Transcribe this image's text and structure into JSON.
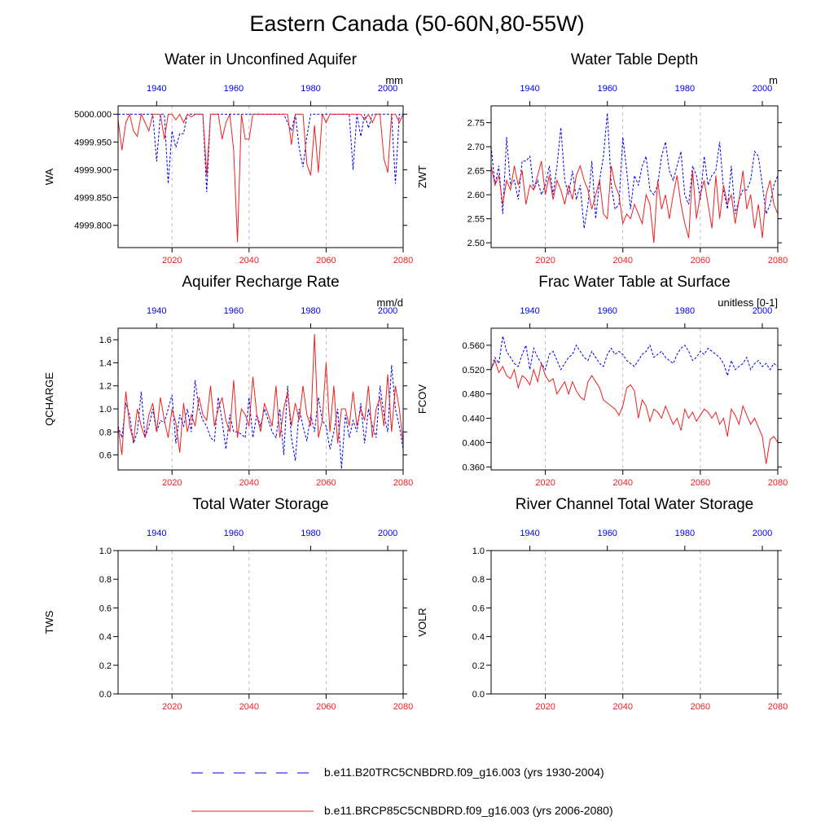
{
  "title": "Eastern Canada (50-60N,80-55W)",
  "colors": {
    "historical": "#0000ee",
    "future": "#ee2020",
    "axis": "#000000",
    "grid": "#b0b0b0"
  },
  "legend": {
    "historical_label": "b.e11.B20TRC5CNBDRD.f09_g16.003 (yrs 1930-2004)",
    "future_label": "b.e11.BRCP85C5CNBDRD.f09_g16.003 (yrs 2006-2080)"
  },
  "chart_data": [
    {
      "type": "line",
      "title": "Water in Unconfined Aquifer",
      "ylabel": "WA",
      "units": "mm",
      "ylim": [
        4999.76,
        5000.015
      ],
      "yticks": [
        4999.8,
        4999.85,
        4999.9,
        4999.95,
        5000.0
      ],
      "ytick_decimals": 3,
      "x_top_range": [
        1930,
        2004
      ],
      "x_top_ticks": [
        1940,
        1960,
        1980,
        2000
      ],
      "x_bottom_range": [
        2006,
        2080
      ],
      "x_bottom_ticks": [
        2020,
        2040,
        2060,
        2080
      ],
      "grid_x": [
        2020,
        2040,
        2060
      ],
      "series": [
        {
          "name": "b.e11.B20TRC5CNBDRD.f09_g16.003 (yrs 1930-2004)",
          "values": [
            5000.0,
            5000.0,
            5000.0,
            5000.0,
            5000.0,
            5000.0,
            5000.0,
            5000.0,
            5000.0,
            5000.0,
            4999.915,
            5000.0,
            5000.0,
            4999.875,
            4999.97,
            4999.94,
            4999.965,
            4999.965,
            5000.0,
            5000.0,
            5000.0,
            5000.0,
            5000.0,
            4999.86,
            5000.0,
            5000.0,
            5000.0,
            5000.0,
            5000.0,
            5000.0,
            5000.0,
            5000.0,
            5000.0,
            5000.0,
            5000.0,
            5000.0,
            5000.0,
            5000.0,
            5000.0,
            5000.0,
            5000.0,
            5000.0,
            5000.0,
            5000.0,
            4999.985,
            4999.97,
            5000.0,
            4999.94,
            4999.905,
            4999.96,
            5000.0,
            5000.0,
            5000.0,
            5000.0,
            5000.0,
            5000.0,
            5000.0,
            5000.0,
            5000.0,
            5000.0,
            5000.0,
            4999.9,
            5000.0,
            4999.96,
            5000.0,
            4999.975,
            5000.0,
            5000.0,
            5000.0,
            5000.0,
            5000.0,
            5000.0,
            4999.875,
            5000.0,
            5000.0
          ]
        },
        {
          "name": "b.e11.BRCP85C5CNBDRD.f09_g16.003 (yrs 2006-2080)",
          "values": [
            4999.99,
            4999.935,
            4999.985,
            5000.0,
            4999.97,
            4999.96,
            5000.0,
            4999.985,
            4999.97,
            5000.0,
            5000.0,
            5000.0,
            4999.955,
            5000.0,
            5000.0,
            4999.99,
            5000.0,
            4999.985,
            5000.0,
            4999.995,
            5000.0,
            5000.0,
            5000.0,
            4999.89,
            5000.0,
            5000.0,
            5000.0,
            4999.955,
            4999.985,
            5000.0,
            4999.935,
            4999.77,
            5000.0,
            4999.955,
            4999.955,
            5000.0,
            5000.0,
            5000.0,
            5000.0,
            5000.0,
            5000.0,
            5000.0,
            5000.0,
            5000.0,
            5000.0,
            4999.945,
            5000.0,
            5000.0,
            5000.0,
            4999.91,
            4999.89,
            4999.98,
            4999.895,
            5000.0,
            4999.985,
            5000.0,
            5000.0,
            5000.0,
            5000.0,
            5000.0,
            5000.0,
            5000.0,
            5000.0,
            5000.0,
            4999.99,
            5000.0,
            4999.985,
            5000.0,
            5000.0,
            4999.92,
            4999.895,
            5000.0,
            5000.0,
            4999.985,
            5000.0
          ]
        }
      ]
    },
    {
      "type": "line",
      "title": "Water Table Depth",
      "ylabel": "ZWT",
      "units": "m",
      "ylim": [
        2.49,
        2.785
      ],
      "yticks": [
        2.5,
        2.55,
        2.6,
        2.65,
        2.7,
        2.75
      ],
      "ytick_decimals": 2,
      "x_top_range": [
        1930,
        2004
      ],
      "x_top_ticks": [
        1940,
        1960,
        1980,
        2000
      ],
      "x_bottom_range": [
        2006,
        2080
      ],
      "x_bottom_ticks": [
        2020,
        2040,
        2060,
        2080
      ],
      "grid_x": [
        2020,
        2040,
        2060
      ],
      "series": [
        {
          "name": "b.e11.B20TRC5CNBDRD.f09_g16.003 (yrs 1930-2004)",
          "values": [
            2.7,
            2.62,
            2.66,
            2.56,
            2.72,
            2.62,
            2.63,
            2.59,
            2.67,
            2.67,
            2.68,
            2.61,
            2.63,
            2.6,
            2.62,
            2.66,
            2.6,
            2.66,
            2.74,
            2.63,
            2.6,
            2.65,
            2.59,
            2.62,
            2.53,
            2.58,
            2.67,
            2.55,
            2.63,
            2.68,
            2.77,
            2.62,
            2.57,
            2.58,
            2.72,
            2.65,
            2.57,
            2.64,
            2.62,
            2.66,
            2.68,
            2.61,
            2.6,
            2.62,
            2.68,
            2.71,
            2.65,
            2.63,
            2.66,
            2.69,
            2.6,
            2.58,
            2.66,
            2.64,
            2.59,
            2.68,
            2.62,
            2.64,
            2.65,
            2.71,
            2.61,
            2.57,
            2.66,
            2.56,
            2.59,
            2.61,
            2.61,
            2.63,
            2.69,
            2.68,
            2.62,
            2.56,
            2.58,
            2.62,
            2.64
          ]
        },
        {
          "name": "b.e11.BRCP85C5CNBDRD.f09_g16.003 (yrs 2006-2080)",
          "values": [
            2.66,
            2.62,
            2.64,
            2.58,
            2.63,
            2.61,
            2.66,
            2.62,
            2.65,
            2.58,
            2.62,
            2.61,
            2.64,
            2.67,
            2.6,
            2.64,
            2.59,
            2.63,
            2.61,
            2.58,
            2.62,
            2.59,
            2.64,
            2.66,
            2.63,
            2.61,
            2.57,
            2.6,
            2.63,
            2.56,
            2.55,
            2.66,
            2.62,
            2.6,
            2.54,
            2.56,
            2.55,
            2.58,
            2.56,
            2.54,
            2.6,
            2.58,
            2.5,
            2.63,
            2.57,
            2.6,
            2.55,
            2.6,
            2.64,
            2.58,
            2.54,
            2.51,
            2.65,
            2.55,
            2.6,
            2.63,
            2.58,
            2.53,
            2.64,
            2.55,
            2.62,
            2.58,
            2.6,
            2.54,
            2.59,
            2.65,
            2.57,
            2.6,
            2.53,
            2.58,
            2.51,
            2.6,
            2.63,
            2.58,
            2.56
          ]
        }
      ]
    },
    {
      "type": "line",
      "title": "Aquifer Recharge Rate",
      "ylabel": "QCHARGE",
      "units": "mm/d",
      "ylim": [
        0.47,
        1.7
      ],
      "yticks": [
        0.6,
        0.8,
        1.0,
        1.2,
        1.4,
        1.6
      ],
      "ytick_decimals": 1,
      "x_top_range": [
        1930,
        2004
      ],
      "x_top_ticks": [
        1940,
        1960,
        1980,
        2000
      ],
      "x_bottom_range": [
        2006,
        2080
      ],
      "x_bottom_ticks": [
        2020,
        2040,
        2060,
        2080
      ],
      "grid_x": [
        2020,
        2040,
        2060
      ],
      "series": [
        {
          "name": "b.e11.B20TRC5CNBDRD.f09_g16.003 (yrs 1930-2004)",
          "values": [
            0.85,
            0.75,
            1.05,
            0.95,
            0.7,
            0.8,
            1.15,
            0.75,
            0.85,
            1.0,
            0.8,
            0.9,
            0.88,
            1.0,
            1.12,
            0.7,
            0.95,
            0.85,
            1.0,
            0.8,
            1.25,
            1.0,
            0.9,
            0.85,
            0.75,
            0.72,
            1.1,
            0.9,
            0.65,
            0.95,
            0.8,
            0.8,
            0.78,
            0.75,
            1.1,
            0.75,
            0.95,
            0.85,
            1.0,
            0.9,
            0.8,
            0.75,
            1.0,
            0.6,
            1.2,
            0.75,
            0.55,
            1.0,
            0.85,
            0.72,
            0.95,
            0.8,
            1.1,
            0.9,
            0.85,
            0.65,
            0.8,
            1.0,
            0.48,
            0.95,
            0.75,
            0.9,
            0.8,
            1.05,
            0.7,
            1.0,
            0.85,
            0.75,
            1.2,
            0.95,
            0.8,
            1.38,
            1.0,
            0.85,
            0.65
          ]
        },
        {
          "name": "b.e11.BRCP85C5CNBDRD.f09_g16.003 (yrs 2006-2080)",
          "values": [
            0.85,
            0.6,
            1.15,
            0.85,
            0.72,
            1.0,
            0.85,
            0.75,
            0.95,
            1.05,
            0.8,
            1.1,
            0.9,
            0.75,
            1.0,
            0.88,
            0.62,
            1.05,
            0.8,
            0.95,
            0.85,
            1.1,
            0.95,
            0.9,
            1.2,
            0.85,
            1.0,
            1.1,
            0.9,
            0.8,
            1.25,
            0.75,
            1.0,
            0.95,
            0.85,
            1.28,
            0.95,
            0.8,
            1.05,
            0.95,
            0.85,
            1.2,
            0.75,
            1.0,
            1.15,
            0.85,
            1.05,
            0.9,
            1.2,
            0.95,
            0.85,
            1.65,
            0.75,
            0.9,
            1.4,
            0.8,
            1.2,
            0.7,
            1.0,
            1.0,
            0.85,
            1.15,
            0.85,
            1.0,
            0.9,
            1.2,
            0.75,
            1.0,
            1.1,
            0.85,
            1.3,
            0.8,
            1.2,
            1.0,
            0.7
          ]
        }
      ]
    },
    {
      "type": "line",
      "title": "Frac Water Table at Surface",
      "ylabel": "FCOV",
      "units": "unitless [0-1]",
      "ylim": [
        0.355,
        0.588
      ],
      "yticks": [
        0.36,
        0.4,
        0.44,
        0.48,
        0.52,
        0.56
      ],
      "ytick_decimals": 3,
      "x_top_range": [
        1930,
        2004
      ],
      "x_top_ticks": [
        1940,
        1960,
        1980,
        2000
      ],
      "x_bottom_range": [
        2006,
        2080
      ],
      "x_bottom_ticks": [
        2020,
        2040,
        2060,
        2080
      ],
      "grid_x": [
        2020,
        2040,
        2060
      ],
      "series": [
        {
          "name": "b.e11.B20TRC5CNBDRD.f09_g16.003 (yrs 1930-2004)",
          "values": [
            0.52,
            0.54,
            0.53,
            0.575,
            0.55,
            0.54,
            0.53,
            0.525,
            0.545,
            0.56,
            0.52,
            0.555,
            0.54,
            0.53,
            0.52,
            0.545,
            0.55,
            0.535,
            0.52,
            0.53,
            0.54,
            0.545,
            0.56,
            0.55,
            0.54,
            0.535,
            0.55,
            0.54,
            0.53,
            0.525,
            0.545,
            0.555,
            0.545,
            0.55,
            0.545,
            0.535,
            0.53,
            0.525,
            0.535,
            0.545,
            0.55,
            0.56,
            0.54,
            0.545,
            0.55,
            0.54,
            0.535,
            0.53,
            0.545,
            0.555,
            0.56,
            0.55,
            0.535,
            0.54,
            0.55,
            0.545,
            0.555,
            0.55,
            0.545,
            0.54,
            0.53,
            0.51,
            0.535,
            0.52,
            0.525,
            0.53,
            0.54,
            0.52,
            0.53,
            0.535,
            0.525,
            0.53,
            0.52,
            0.53,
            0.525
          ]
        },
        {
          "name": "b.e11.BRCP85C5CNBDRD.f09_g16.003 (yrs 2006-2080)",
          "values": [
            0.52,
            0.535,
            0.515,
            0.525,
            0.51,
            0.505,
            0.52,
            0.49,
            0.51,
            0.505,
            0.495,
            0.52,
            0.5,
            0.53,
            0.51,
            0.5,
            0.505,
            0.48,
            0.49,
            0.5,
            0.48,
            0.5,
            0.485,
            0.475,
            0.47,
            0.5,
            0.51,
            0.5,
            0.49,
            0.47,
            0.465,
            0.46,
            0.455,
            0.445,
            0.46,
            0.49,
            0.495,
            0.485,
            0.44,
            0.47,
            0.46,
            0.435,
            0.455,
            0.45,
            0.44,
            0.46,
            0.445,
            0.43,
            0.44,
            0.42,
            0.455,
            0.44,
            0.45,
            0.435,
            0.445,
            0.455,
            0.45,
            0.44,
            0.45,
            0.43,
            0.44,
            0.41,
            0.455,
            0.445,
            0.43,
            0.46,
            0.445,
            0.43,
            0.44,
            0.425,
            0.41,
            0.365,
            0.405,
            0.41,
            0.4
          ]
        }
      ]
    },
    {
      "type": "line",
      "title": "Total Water Storage",
      "ylabel": "TWS",
      "units": "",
      "ylim": [
        0.0,
        1.0
      ],
      "yticks": [
        0.0,
        0.2,
        0.4,
        0.6,
        0.8,
        1.0
      ],
      "ytick_decimals": 1,
      "x_top_range": [
        1930,
        2004
      ],
      "x_top_ticks": [
        1940,
        1960,
        1980,
        2000
      ],
      "x_bottom_range": [
        2006,
        2080
      ],
      "x_bottom_ticks": [
        2020,
        2040,
        2060,
        2080
      ],
      "grid_x": [
        2020,
        2040,
        2060
      ],
      "series": []
    },
    {
      "type": "line",
      "title": "River Channel Total Water Storage",
      "ylabel": "VOLR",
      "units": "",
      "ylim": [
        0.0,
        1.0
      ],
      "yticks": [
        0.0,
        0.2,
        0.4,
        0.6,
        0.8,
        1.0
      ],
      "ytick_decimals": 1,
      "x_top_range": [
        1930,
        2004
      ],
      "x_top_ticks": [
        1940,
        1960,
        1980,
        2000
      ],
      "x_bottom_range": [
        2006,
        2080
      ],
      "x_bottom_ticks": [
        2020,
        2040,
        2060,
        2080
      ],
      "grid_x": [
        2020,
        2040,
        2060
      ],
      "series": []
    }
  ]
}
